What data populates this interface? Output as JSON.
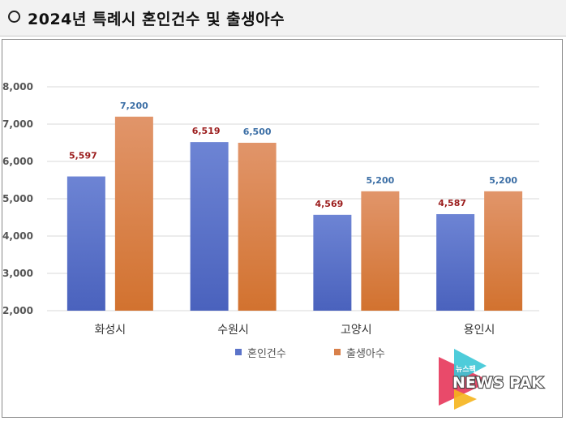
{
  "header": {
    "title": "2024년 특례시 혼인건수 및 출생아수"
  },
  "chart_data": {
    "type": "bar",
    "categories": [
      "화성시",
      "수원시",
      "고양시",
      "용인시"
    ],
    "series": [
      {
        "name": "혼인건수",
        "values": [
          5597,
          6519,
          4569,
          4587
        ],
        "labels": [
          "5,597",
          "6,519",
          "4,569",
          "4,587"
        ],
        "color": "#5b73c9",
        "label_color": "#9b1c1c"
      },
      {
        "name": "출생아수",
        "values": [
          7200,
          6500,
          5200,
          5200
        ],
        "labels": [
          "7,200",
          "6,500",
          "5,200",
          "5,200"
        ],
        "color": "#d8804a",
        "label_color": "#3b6ea5"
      }
    ],
    "yticks": [
      "8,000",
      "7,000",
      "6,000",
      "5,000",
      "4,000",
      "3,000",
      "2,000"
    ],
    "ylim": [
      2000,
      8000
    ],
    "grid": true,
    "legend": "bottom"
  },
  "watermark": {
    "small": "뉴스팩",
    "main": "NEWS PAK"
  }
}
